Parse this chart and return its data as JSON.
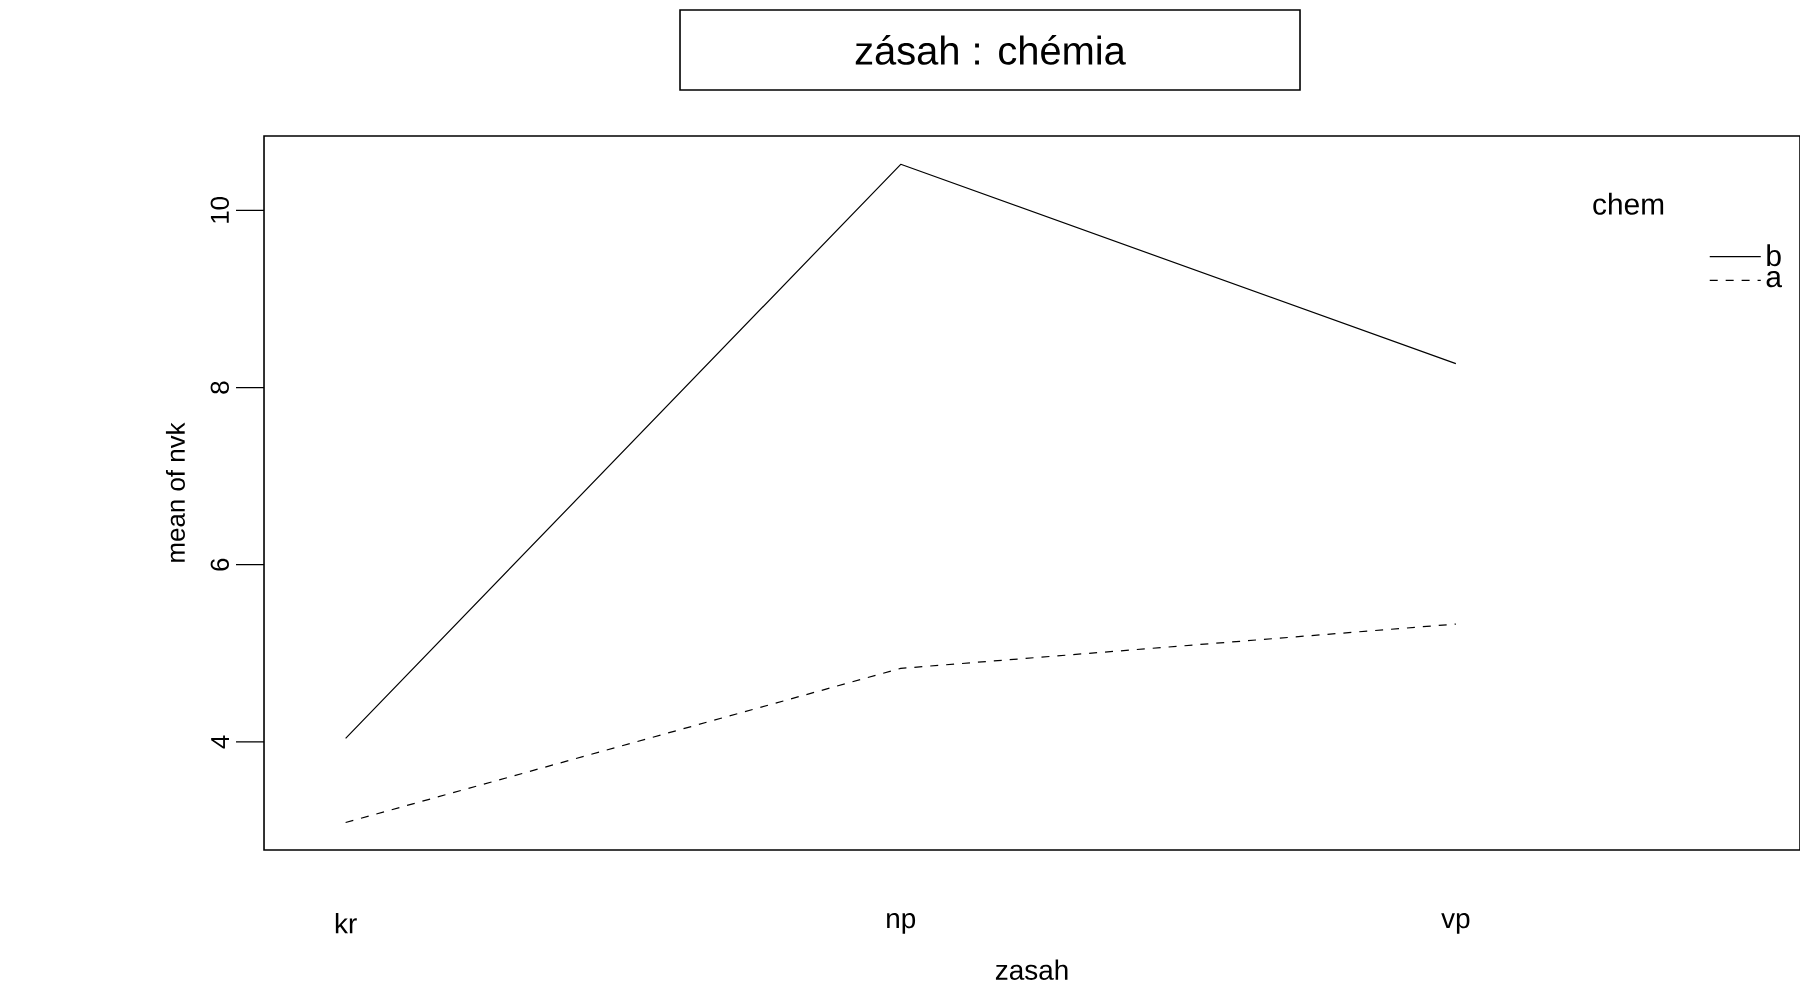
{
  "chart_data": {
    "type": "line",
    "title": "zásah : chémia",
    "xlabel": "zasah",
    "ylabel": "mean of nvk",
    "legend_title": "chem",
    "legend": "top right",
    "categories": [
      "kr",
      "np",
      "vp"
    ],
    "series": [
      {
        "name": "b",
        "color": "#000000",
        "line_style": "solid",
        "values": [
          4.04,
          10.52,
          8.27
        ]
      },
      {
        "name": "a",
        "color": "#000000",
        "line_style": "dashed",
        "values": [
          3.09,
          4.83,
          5.33
        ]
      }
    ],
    "ylim": [
      2.78,
      10.84
    ],
    "yticks": [
      4,
      6,
      8,
      10
    ],
    "grid": false,
    "marker": "none"
  }
}
